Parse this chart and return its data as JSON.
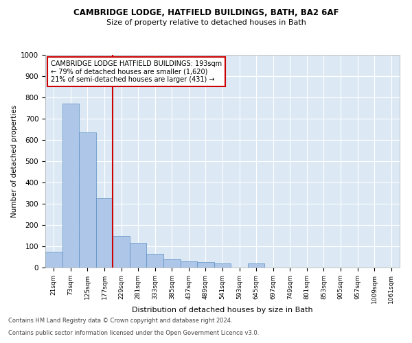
{
  "title1": "CAMBRIDGE LODGE, HATFIELD BUILDINGS, BATH, BA2 6AF",
  "title2": "Size of property relative to detached houses in Bath",
  "xlabel": "Distribution of detached houses by size in Bath",
  "ylabel": "Number of detached properties",
  "annotation_line1": "CAMBRIDGE LODGE HATFIELD BUILDINGS: 193sqm",
  "annotation_line2": "← 79% of detached houses are smaller (1,620)",
  "annotation_line3": "21% of semi-detached houses are larger (431) →",
  "footnote1": "Contains HM Land Registry data © Crown copyright and database right 2024.",
  "footnote2": "Contains public sector information licensed under the Open Government Licence v3.0.",
  "categories": [
    "21sqm",
    "73sqm",
    "125sqm",
    "177sqm",
    "229sqm",
    "281sqm",
    "333sqm",
    "385sqm",
    "437sqm",
    "489sqm",
    "541sqm",
    "593sqm",
    "645sqm",
    "697sqm",
    "749sqm",
    "801sqm",
    "853sqm",
    "905sqm",
    "957sqm",
    "1009sqm",
    "1061sqm"
  ],
  "values": [
    75,
    770,
    635,
    325,
    150,
    115,
    65,
    40,
    30,
    25,
    18,
    0,
    18,
    0,
    0,
    0,
    0,
    0,
    0,
    0,
    0
  ],
  "bar_color": "#aec6e8",
  "bar_edge_color": "#5a8fc2",
  "bg_color": "#dce9f5",
  "grid_color": "#ffffff",
  "red_line_x": 3.5,
  "red_line_color": "#cc0000",
  "annotation_box_color": "#ffffff",
  "annotation_box_edge": "#cc0000",
  "ylim": [
    0,
    1000
  ],
  "yticks": [
    0,
    100,
    200,
    300,
    400,
    500,
    600,
    700,
    800,
    900,
    1000
  ]
}
